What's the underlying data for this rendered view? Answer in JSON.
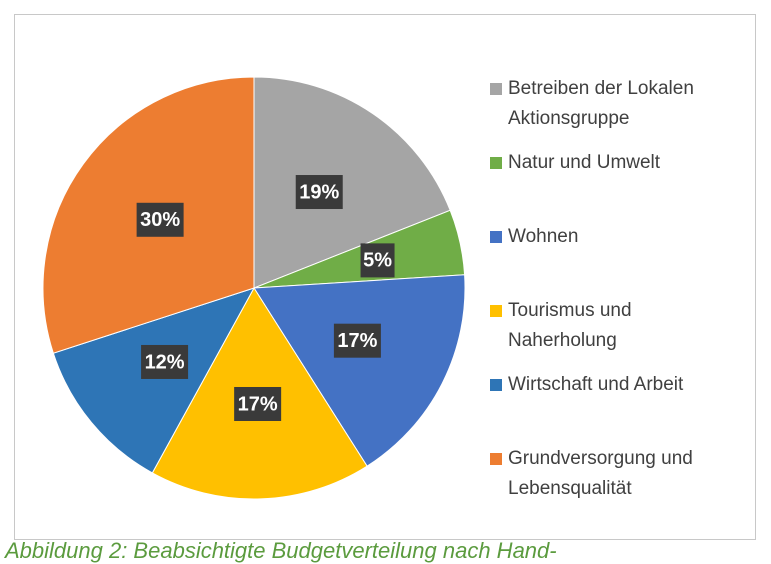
{
  "chart_data": {
    "type": "pie",
    "categories": [
      "Betreiben der Lokalen Aktionsgruppe",
      "Natur und Umwelt",
      "Wohnen",
      "Tourismus und Naherholung",
      "Wirtschaft und Arbeit",
      "Grundversorgung und Lebensqualität"
    ],
    "values": [
      19,
      5,
      17,
      17,
      12,
      30
    ],
    "value_labels": [
      "19%",
      "5%",
      "17%",
      "17%",
      "12%",
      "30%"
    ],
    "colors": [
      "#a5a5a5",
      "#70ad47",
      "#4472c4",
      "#ffc000",
      "#2e75b6",
      "#ed7d31"
    ],
    "legend": "right"
  },
  "caption": "Abbildung 2: Beabsichtigte Budgetverteilung nach Hand-"
}
